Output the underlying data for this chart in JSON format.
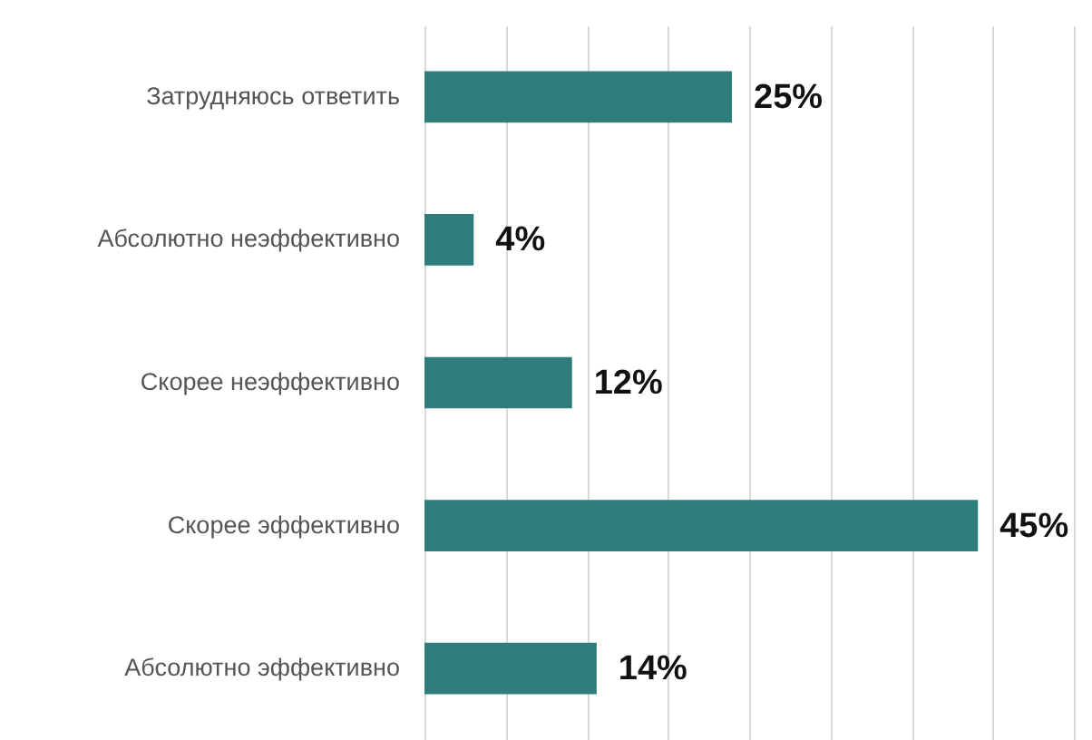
{
  "chart_data": {
    "type": "bar",
    "orientation": "horizontal",
    "categories": [
      "Затрудняюсь ответить",
      "Абсолютно неэффективно",
      "Скорее неэффективно",
      "Скорее эффективно",
      "Абсолютно эффективно"
    ],
    "values": [
      25,
      4,
      12,
      45,
      14
    ],
    "value_labels": [
      "25%",
      "4%",
      "12%",
      "45%",
      "14%"
    ],
    "color": "#2e7d7a",
    "xlim": [
      0,
      52.8
    ],
    "xticks": [
      {
        "value": 0,
        "label": null
      },
      {
        "value": 6.6,
        "label": null
      },
      {
        "value": 13.2,
        "label": null
      },
      {
        "value": 19.8,
        "label": null
      },
      {
        "value": 26.4,
        "label": null
      },
      {
        "value": 33,
        "label": null
      },
      {
        "value": 39.6,
        "label": null
      },
      {
        "value": 46.2,
        "label": null
      },
      {
        "value": 52.8,
        "label": null
      }
    ],
    "grid": "x",
    "tick_labels": "y"
  }
}
